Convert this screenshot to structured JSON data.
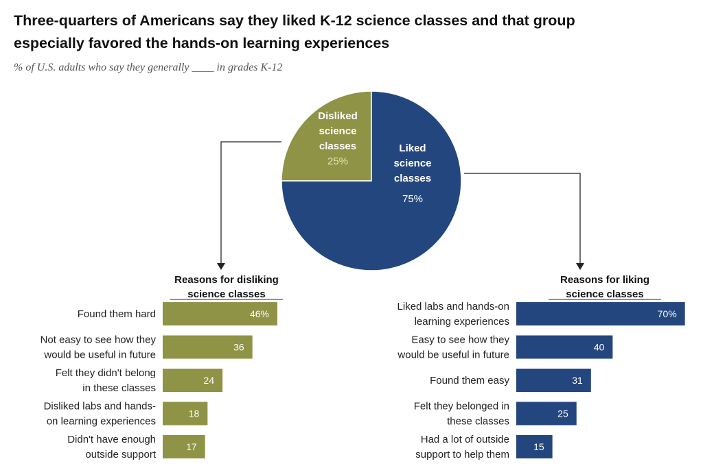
{
  "chart_data": {
    "type": "pie+bar",
    "title_line1": "Three-quarters of Americans say they liked K-12 science classes and that group",
    "title_line2": "especially favored the hands-on learning experiences",
    "subtitle": "% of U.S. adults who say they generally ____ in grades K-12",
    "pie": {
      "slices": [
        {
          "label": [
            "Disliked",
            "science",
            "classes"
          ],
          "value": 25,
          "value_label": "25%",
          "color": "#8e9346"
        },
        {
          "label": [
            "Liked",
            "science",
            "classes"
          ],
          "value": 75,
          "value_label": "75%",
          "color": "#24467e"
        }
      ]
    },
    "left": {
      "heading": [
        "Reasons for disliking",
        "science classes"
      ],
      "color": "#8e9346",
      "categories": [
        [
          "Found them hard"
        ],
        [
          "Not easy to see how they",
          "would be useful in future"
        ],
        [
          "Felt they didn't belong",
          "in these classes"
        ],
        [
          "Disliked labs and hands-",
          "on learning experiences"
        ],
        [
          "Didn't have enough",
          "outside support"
        ]
      ],
      "values": [
        46,
        36,
        24,
        18,
        17
      ],
      "value_labels": [
        "46%",
        "36",
        "24",
        "18",
        "17"
      ]
    },
    "right": {
      "heading": [
        "Reasons for liking",
        "science classes"
      ],
      "color": "#24467e",
      "categories": [
        [
          "Liked labs and hands-on",
          "learning experiences"
        ],
        [
          "Easy to see how they",
          "would be useful in future"
        ],
        [
          "Found them easy"
        ],
        [
          "Felt they belonged in",
          "these classes"
        ],
        [
          "Had a lot of outside",
          "support to help them"
        ]
      ],
      "values": [
        70,
        40,
        31,
        25,
        15
      ],
      "value_labels": [
        "70%",
        "40",
        "31",
        "25",
        "15"
      ]
    }
  }
}
